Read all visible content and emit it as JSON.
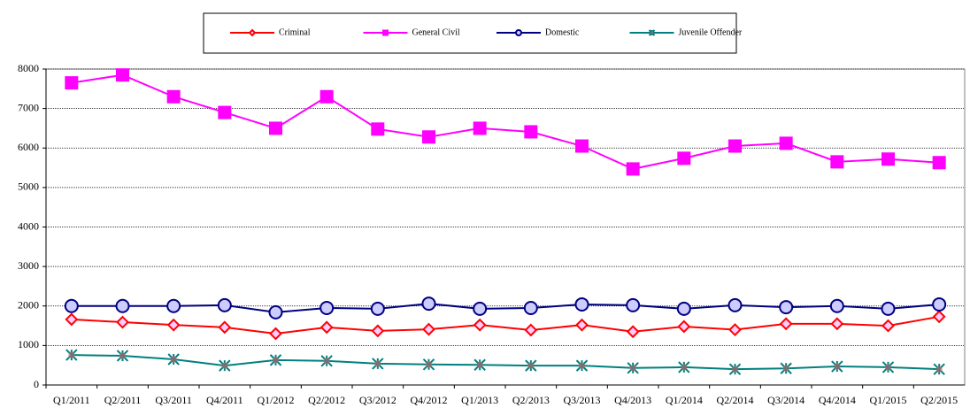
{
  "chart_data": {
    "type": "line",
    "categories": [
      "Q1/2011",
      "Q2/2011",
      "Q3/2011",
      "Q4/2011",
      "Q1/2012",
      "Q2/2012",
      "Q3/2012",
      "Q4/2012",
      "Q1/2013",
      "Q2/2013",
      "Q3/2013",
      "Q4/2013",
      "Q1/2014",
      "Q2/2014",
      "Q3/2014",
      "Q4/2014",
      "Q1/2015",
      "Q2/2015"
    ],
    "series": [
      {
        "name": "Criminal",
        "color": "#ff0000",
        "marker": "diamond",
        "marker_fill": "#ffccff",
        "values": [
          1660,
          1590,
          1520,
          1460,
          1300,
          1460,
          1370,
          1410,
          1520,
          1390,
          1520,
          1350,
          1480,
          1400,
          1550,
          1550,
          1500,
          1730
        ]
      },
      {
        "name": "General Civil",
        "color": "#ff00ff",
        "marker": "square",
        "marker_fill": "#ff00ff",
        "values": [
          7650,
          7850,
          7300,
          6900,
          6500,
          7300,
          6480,
          6280,
          6500,
          6410,
          6050,
          5470,
          5740,
          6050,
          6120,
          5650,
          5720,
          5630
        ]
      },
      {
        "name": "Domestic",
        "color": "#000080",
        "marker": "circle",
        "marker_fill": "#ccccff",
        "values": [
          2000,
          2000,
          2000,
          2020,
          1840,
          1950,
          1930,
          2060,
          1930,
          1950,
          2040,
          2020,
          1930,
          2020,
          1970,
          2000,
          1930,
          2040
        ]
      },
      {
        "name": "Juvenile Offender",
        "color": "#008080",
        "marker": "star",
        "marker_fill": "#cc6666",
        "values": [
          760,
          740,
          650,
          490,
          630,
          610,
          540,
          520,
          510,
          490,
          490,
          430,
          450,
          400,
          420,
          470,
          450,
          400
        ]
      }
    ],
    "ylim": [
      0,
      8000
    ],
    "yticks": [
      0,
      1000,
      2000,
      3000,
      4000,
      5000,
      6000,
      7000,
      8000
    ],
    "grid": true,
    "legend": "top"
  }
}
